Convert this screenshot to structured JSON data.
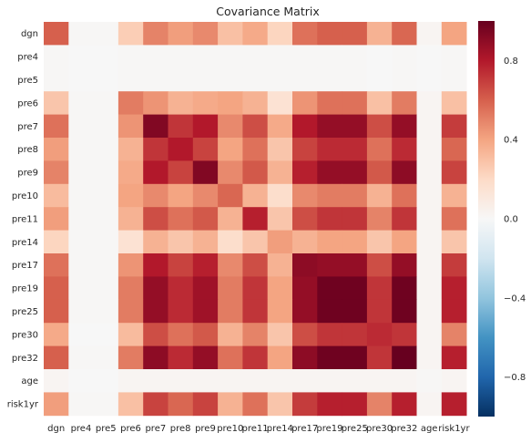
{
  "chart_data": {
    "type": "heatmap",
    "title": "Covariance Matrix",
    "x_labels": [
      "dgn",
      "pre4",
      "pre5",
      "pre6",
      "pre7",
      "pre8",
      "pre9",
      "pre10",
      "pre11",
      "pre14",
      "pre17",
      "pre19",
      "pre25",
      "pre30",
      "pre32",
      "age",
      "risk1yr"
    ],
    "y_labels": [
      "dgn",
      "pre4",
      "pre5",
      "pre6",
      "pre7",
      "pre8",
      "pre9",
      "pre10",
      "pre11",
      "pre14",
      "pre17",
      "pre19",
      "pre25",
      "pre30",
      "pre32",
      "age",
      "risk1yr"
    ],
    "values": [
      [
        0.6,
        0.01,
        0.01,
        0.25,
        0.5,
        0.42,
        0.48,
        0.3,
        0.38,
        0.22,
        0.55,
        0.6,
        0.6,
        0.35,
        0.58,
        0.02,
        0.4
      ],
      [
        0.01,
        0.0,
        0.0,
        0.01,
        0.01,
        0.01,
        0.01,
        0.01,
        0.01,
        0.01,
        0.01,
        0.01,
        0.01,
        0.0,
        0.01,
        0.0,
        0.01
      ],
      [
        0.01,
        0.0,
        0.0,
        0.01,
        0.01,
        0.01,
        0.01,
        0.01,
        0.01,
        0.01,
        0.01,
        0.01,
        0.01,
        0.0,
        0.01,
        0.0,
        0.01
      ],
      [
        0.28,
        0.01,
        0.01,
        0.52,
        0.45,
        0.35,
        0.38,
        0.4,
        0.35,
        0.15,
        0.45,
        0.55,
        0.55,
        0.3,
        0.52,
        0.02,
        0.3
      ],
      [
        0.55,
        0.01,
        0.01,
        0.45,
        0.93,
        0.72,
        0.8,
        0.48,
        0.65,
        0.38,
        0.8,
        0.88,
        0.88,
        0.65,
        0.88,
        0.02,
        0.7
      ],
      [
        0.42,
        0.01,
        0.01,
        0.35,
        0.72,
        0.8,
        0.68,
        0.4,
        0.55,
        0.28,
        0.68,
        0.75,
        0.75,
        0.55,
        0.75,
        0.02,
        0.58
      ],
      [
        0.5,
        0.01,
        0.01,
        0.38,
        0.8,
        0.68,
        0.93,
        0.48,
        0.62,
        0.35,
        0.78,
        0.88,
        0.88,
        0.62,
        0.9,
        0.02,
        0.68
      ],
      [
        0.32,
        0.01,
        0.01,
        0.4,
        0.48,
        0.4,
        0.48,
        0.58,
        0.35,
        0.18,
        0.48,
        0.52,
        0.52,
        0.35,
        0.55,
        0.02,
        0.35
      ],
      [
        0.42,
        0.01,
        0.01,
        0.35,
        0.65,
        0.55,
        0.62,
        0.35,
        0.78,
        0.28,
        0.65,
        0.72,
        0.72,
        0.5,
        0.72,
        0.02,
        0.55
      ],
      [
        0.22,
        0.01,
        0.01,
        0.15,
        0.35,
        0.28,
        0.35,
        0.18,
        0.28,
        0.42,
        0.35,
        0.4,
        0.4,
        0.28,
        0.4,
        0.02,
        0.28
      ],
      [
        0.55,
        0.01,
        0.01,
        0.45,
        0.8,
        0.68,
        0.78,
        0.48,
        0.65,
        0.35,
        0.9,
        0.88,
        0.88,
        0.65,
        0.88,
        0.02,
        0.7
      ],
      [
        0.6,
        0.01,
        0.01,
        0.52,
        0.88,
        0.75,
        0.85,
        0.52,
        0.72,
        0.4,
        0.88,
        0.98,
        0.98,
        0.72,
        0.98,
        0.02,
        0.78
      ],
      [
        0.6,
        0.01,
        0.01,
        0.52,
        0.88,
        0.75,
        0.85,
        0.52,
        0.72,
        0.4,
        0.88,
        0.98,
        0.98,
        0.72,
        0.98,
        0.02,
        0.78
      ],
      [
        0.38,
        0.0,
        0.0,
        0.32,
        0.65,
        0.55,
        0.62,
        0.35,
        0.5,
        0.28,
        0.65,
        0.72,
        0.72,
        0.75,
        0.72,
        0.02,
        0.5
      ],
      [
        0.6,
        0.01,
        0.01,
        0.52,
        0.9,
        0.75,
        0.88,
        0.55,
        0.72,
        0.4,
        0.9,
        0.98,
        0.98,
        0.72,
        1.0,
        0.02,
        0.78
      ],
      [
        0.02,
        0.0,
        0.0,
        0.02,
        0.02,
        0.02,
        0.02,
        0.02,
        0.02,
        0.02,
        0.02,
        0.02,
        0.02,
        0.02,
        0.02,
        0.01,
        0.02
      ],
      [
        0.42,
        0.01,
        0.01,
        0.3,
        0.68,
        0.58,
        0.68,
        0.35,
        0.55,
        0.28,
        0.7,
        0.78,
        0.78,
        0.5,
        0.78,
        0.02,
        0.78
      ]
    ],
    "colorbar": {
      "min": -1.0,
      "max": 1.0,
      "ticks": [
        -0.8,
        -0.4,
        0.0,
        0.4,
        0.8
      ],
      "tick_labels": [
        "−0.8",
        "−0.4",
        "0.0",
        "0.4",
        "0.8"
      ],
      "colormap": "RdBu_r"
    }
  }
}
